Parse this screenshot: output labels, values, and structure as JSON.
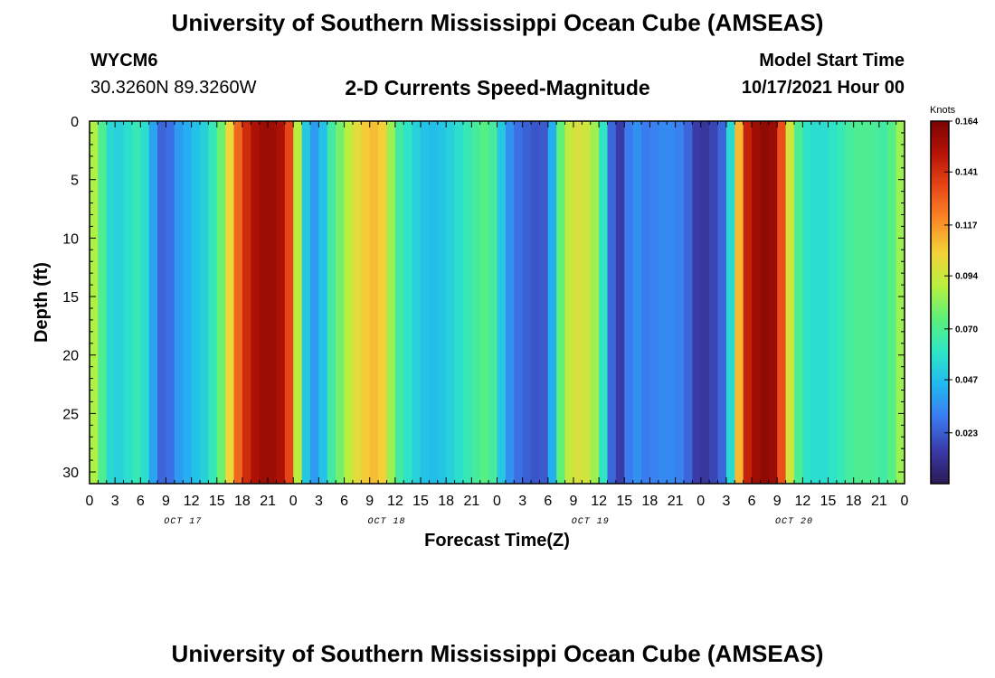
{
  "header": {
    "title": "University of Southern Mississippi Ocean Cube (AMSEAS)",
    "station": "WYCM6",
    "coords": "30.3260N  89.3260W",
    "subtitle": "2-D Currents Speed-Magnitude",
    "model_start_label": "Model Start Time",
    "model_start_value": "10/17/2021 Hour 00"
  },
  "footer": {
    "title": "University of Southern Mississippi Ocean Cube (AMSEAS)"
  },
  "chart_data": {
    "type": "heatmap",
    "title": "2-D Currents Speed-Magnitude",
    "xlabel": "Forecast Time(Z)",
    "ylabel": "Depth (ft)",
    "x_hours_range": [
      0,
      96
    ],
    "ylim": [
      0,
      31
    ],
    "x_tick_hours": [
      0,
      3,
      6,
      9,
      12,
      15,
      18,
      21,
      24,
      27,
      30,
      33,
      36,
      39,
      42,
      45,
      48,
      51,
      54,
      57,
      60,
      63,
      66,
      69,
      72,
      75,
      78,
      81,
      84,
      87,
      90,
      93,
      96
    ],
    "x_tick_labels": [
      "0",
      "3",
      "6",
      "9",
      "12",
      "15",
      "18",
      "21",
      "0",
      "3",
      "6",
      "9",
      "12",
      "15",
      "18",
      "21",
      "0",
      "3",
      "6",
      "9",
      "12",
      "15",
      "18",
      "21",
      "0",
      "3",
      "6",
      "9",
      "12",
      "15",
      "18",
      "21",
      "0"
    ],
    "y_ticks": [
      0,
      5,
      10,
      15,
      20,
      25,
      30
    ],
    "y_tick_labels": [
      "0",
      "5",
      "10",
      "15",
      "20",
      "25",
      "30"
    ],
    "days": [
      {
        "label": "OCT 17",
        "center_hour": 11
      },
      {
        "label": "OCT 18",
        "center_hour": 35
      },
      {
        "label": "OCT 19",
        "center_hour": 59
      },
      {
        "label": "OCT 20",
        "center_hour": 83
      }
    ],
    "colorbar": {
      "unit": "Knots",
      "min": 0.0,
      "max": 0.164,
      "ticks": [
        "0.164",
        "0.141",
        "0.117",
        "0.094",
        "0.070",
        "0.047",
        "0.023"
      ],
      "colormap": [
        "#2b1a56",
        "#3a3aa8",
        "#3b7af0",
        "#22b8f0",
        "#2ee6c6",
        "#5cf07a",
        "#b8f040",
        "#f4d33a",
        "#fb8a26",
        "#e84818",
        "#b81406",
        "#7a0403"
      ]
    },
    "speed_profile_knots": [
      [
        0,
        0.095
      ],
      [
        1,
        0.08
      ],
      [
        2,
        0.06
      ],
      [
        3,
        0.05
      ],
      [
        4,
        0.055
      ],
      [
        6,
        0.065
      ],
      [
        7,
        0.05
      ],
      [
        8,
        0.03
      ],
      [
        9,
        0.02
      ],
      [
        10,
        0.035
      ],
      [
        12,
        0.045
      ],
      [
        14,
        0.055
      ],
      [
        16,
        0.085
      ],
      [
        17,
        0.12
      ],
      [
        19,
        0.15
      ],
      [
        21,
        0.158
      ],
      [
        23,
        0.15
      ],
      [
        24,
        0.12
      ],
      [
        25,
        0.06
      ],
      [
        26,
        0.04
      ],
      [
        27,
        0.035
      ],
      [
        28,
        0.06
      ],
      [
        30,
        0.085
      ],
      [
        32,
        0.105
      ],
      [
        34,
        0.11
      ],
      [
        35,
        0.1
      ],
      [
        36,
        0.07
      ],
      [
        38,
        0.055
      ],
      [
        40,
        0.045
      ],
      [
        42,
        0.05
      ],
      [
        44,
        0.06
      ],
      [
        46,
        0.07
      ],
      [
        47,
        0.075
      ],
      [
        48,
        0.06
      ],
      [
        49,
        0.04
      ],
      [
        50,
        0.03
      ],
      [
        51,
        0.025
      ],
      [
        53,
        0.02
      ],
      [
        54,
        0.025
      ],
      [
        55,
        0.06
      ],
      [
        56,
        0.09
      ],
      [
        58,
        0.1
      ],
      [
        60,
        0.08
      ],
      [
        61,
        0.04
      ],
      [
        62,
        0.01
      ],
      [
        63,
        0.02
      ],
      [
        64,
        0.04
      ],
      [
        65,
        0.03
      ],
      [
        66,
        0.03
      ],
      [
        68,
        0.035
      ],
      [
        70,
        0.03
      ],
      [
        72,
        0.01
      ],
      [
        74,
        0.02
      ],
      [
        75,
        0.03
      ],
      [
        76,
        0.08
      ],
      [
        77,
        0.14
      ],
      [
        79,
        0.16
      ],
      [
        81,
        0.155
      ],
      [
        82,
        0.11
      ],
      [
        83,
        0.08
      ],
      [
        84,
        0.06
      ],
      [
        86,
        0.055
      ],
      [
        88,
        0.06
      ],
      [
        90,
        0.07
      ],
      [
        92,
        0.07
      ],
      [
        94,
        0.065
      ],
      [
        95,
        0.08
      ],
      [
        96,
        0.09
      ]
    ]
  }
}
